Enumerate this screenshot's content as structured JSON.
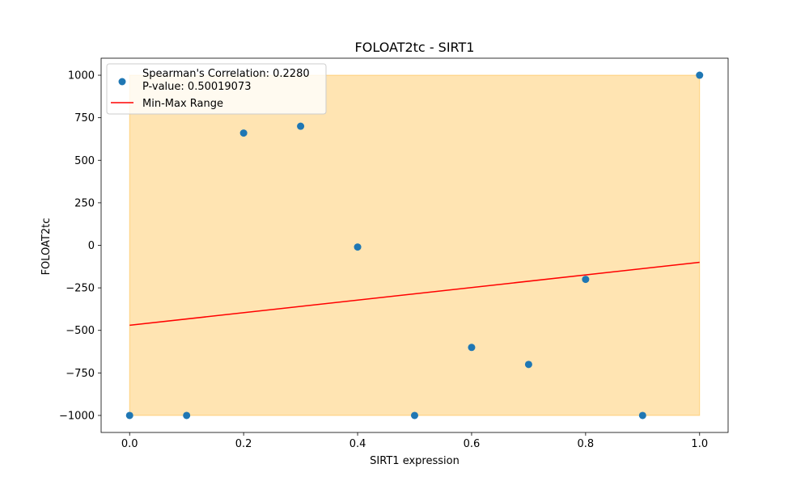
{
  "chart_data": {
    "type": "scatter",
    "title": "FOLOAT2tc - SIRT1",
    "xlabel": "SIRT1 expression",
    "ylabel": "FOLOAT2tc",
    "xlim": [
      -0.05,
      1.05
    ],
    "ylim": [
      -1100,
      1100
    ],
    "xticks": [
      0.0,
      0.2,
      0.4,
      0.6,
      0.8,
      1.0
    ],
    "xtick_labels": [
      "0.0",
      "0.2",
      "0.4",
      "0.6",
      "0.8",
      "1.0"
    ],
    "yticks": [
      1000,
      750,
      500,
      250,
      0,
      -250,
      -500,
      -750,
      -1000
    ],
    "ytick_labels": [
      "1000",
      "750",
      "500",
      "250",
      "0",
      "−250",
      "−500",
      "−750",
      "−1000"
    ],
    "grid": false,
    "points": {
      "x": [
        0.0,
        0.1,
        0.2,
        0.3,
        0.4,
        0.5,
        0.6,
        0.7,
        0.8,
        0.9,
        1.0
      ],
      "y": [
        -1000,
        -1000,
        660,
        700,
        -10,
        -1000,
        -600,
        -700,
        -200,
        -1000,
        1000
      ],
      "color": "#1f77b4"
    },
    "fill_range": {
      "x": [
        0.0,
        1.0
      ],
      "y": [
        -1000,
        1000
      ],
      "color": "#ffa500",
      "opacity": 0.3
    },
    "line": {
      "x": [
        0.0,
        1.0
      ],
      "y": [
        -470,
        -100
      ],
      "color": "#ff0000"
    },
    "legend": {
      "position": "top-left",
      "entries": [
        {
          "marker": "point",
          "label_lines": [
            "Spearman's Correlation: 0.2280",
            "P-value: 0.50019073"
          ]
        },
        {
          "marker": "line",
          "label_lines": [
            "Min-Max Range"
          ]
        }
      ]
    }
  }
}
